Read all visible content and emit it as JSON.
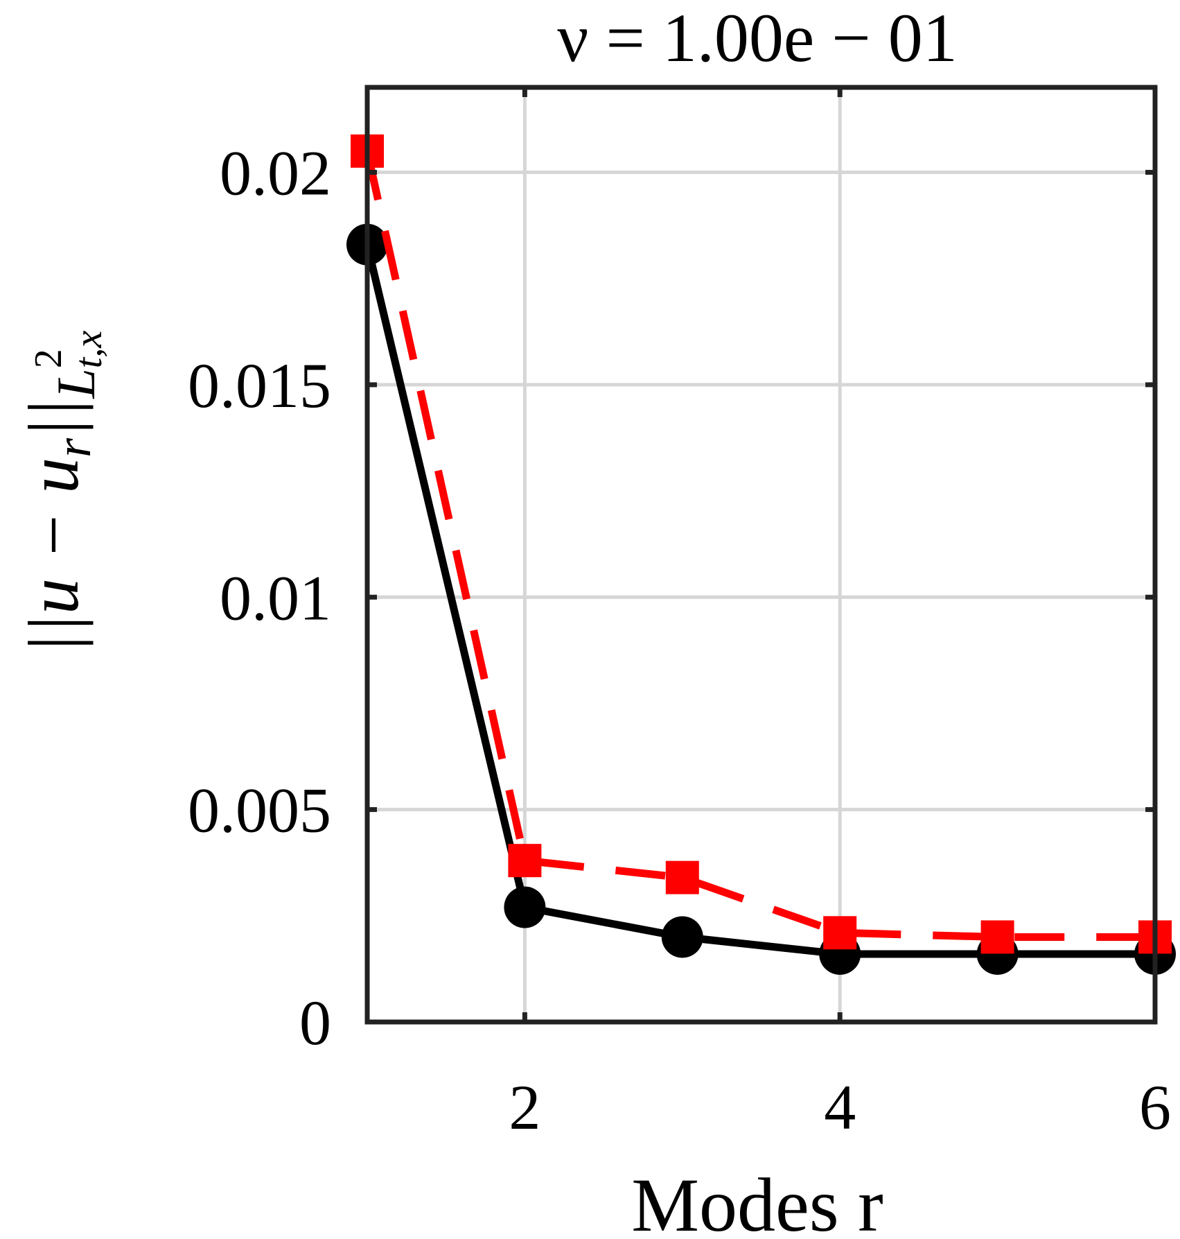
{
  "chart_data": {
    "type": "line",
    "title": "ν = 1.00e − 01",
    "xlabel": "Modes r",
    "ylabel": "||u − u_r||_{L²_{t,x}}",
    "ylabel_parts": {
      "main": "||u − u",
      "sub_r": "r",
      "after": "||",
      "script_L": "L",
      "sup": "2",
      "sub": "t,x"
    },
    "x": [
      1,
      2,
      3,
      4,
      5,
      6
    ],
    "xlim": [
      1,
      6
    ],
    "ylim": [
      0,
      0.022
    ],
    "xticks": [
      2,
      4,
      6
    ],
    "xtick_labels": [
      "2",
      "4",
      "6"
    ],
    "yticks": [
      0,
      0.005,
      0.01,
      0.015,
      0.02
    ],
    "ytick_labels": [
      "0",
      "0.005",
      "0.01",
      "0.015",
      "0.02"
    ],
    "grid": true,
    "series": [
      {
        "values": [
          0.0183,
          0.0027,
          0.002,
          0.0016,
          0.0016,
          0.0016
        ],
        "color": "#000000",
        "line_style": "solid",
        "marker": "circle"
      },
      {
        "values": [
          0.0205,
          0.0038,
          0.0034,
          0.0021,
          0.002,
          0.002
        ],
        "color": "#ff0000",
        "line_style": "dashed",
        "marker": "square"
      }
    ]
  }
}
